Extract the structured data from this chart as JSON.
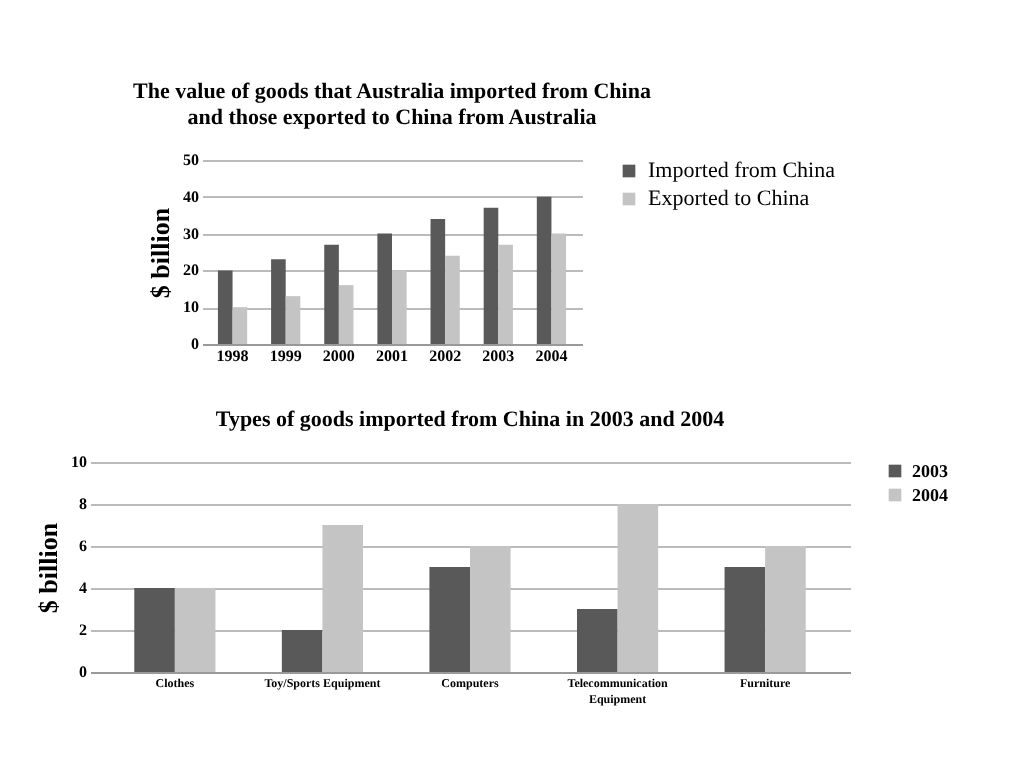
{
  "chart_data": [
    {
      "type": "bar",
      "title": "The value of goods that Australia imported from China\nand those exported to China from Australia",
      "ylabel": "$ billion",
      "categories": [
        "1998",
        "1999",
        "2000",
        "2001",
        "2002",
        "2003",
        "2004"
      ],
      "series": [
        {
          "name": "Imported from China",
          "color": "#595959",
          "values": [
            20,
            23,
            27,
            30,
            34,
            37,
            40
          ]
        },
        {
          "name": "Exported to China",
          "color": "#c4c4c4",
          "values": [
            10,
            13,
            16,
            20,
            24,
            27,
            30
          ]
        }
      ],
      "ylim": [
        0,
        50
      ],
      "yticks": [
        0,
        10,
        20,
        30,
        40,
        50
      ],
      "grid": "y",
      "legend": "right"
    },
    {
      "type": "bar",
      "title": "Types of goods imported from China in 2003 and 2004",
      "ylabel": "$ billion",
      "categories": [
        "Clothes",
        "Toy/Sports Equipment",
        "Computers",
        "Telecommunication Equipment",
        "Furniture"
      ],
      "series": [
        {
          "name": "2003",
          "color": "#595959",
          "values": [
            4,
            2,
            5,
            3,
            5
          ]
        },
        {
          "name": "2004",
          "color": "#c4c4c4",
          "values": [
            4,
            7,
            6,
            8,
            6
          ]
        }
      ],
      "ylim": [
        0,
        10
      ],
      "yticks": [
        0,
        2,
        4,
        6,
        8,
        10
      ],
      "grid": "y",
      "legend": "right"
    }
  ]
}
